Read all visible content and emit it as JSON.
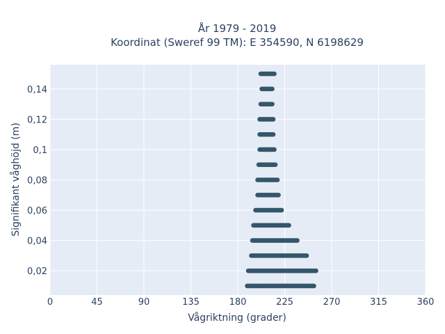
{
  "chart_data": {
    "type": "scatter",
    "title_line1": "År 1979 - 2019",
    "title_line2": "Koordinat (Sweref 99 TM): E 354590, N 6198629",
    "xlabel": "Vågriktning (grader)",
    "ylabel": "Signifikant våghöjd (m)",
    "xlim": [
      0,
      360
    ],
    "ylim": [
      0.004,
      0.156
    ],
    "x_ticks": [
      0,
      45,
      90,
      135,
      180,
      225,
      270,
      315,
      360
    ],
    "x_tick_labels": [
      "0",
      "45",
      "90",
      "135",
      "180",
      "225",
      "270",
      "315",
      "360"
    ],
    "y_ticks": [
      0.02,
      0.04,
      0.06,
      0.08,
      0.1,
      0.12,
      0.14
    ],
    "y_tick_labels": [
      "0,02",
      "0,04",
      "0,06",
      "0,08",
      "0,1",
      "0,12",
      "0,14"
    ],
    "grid": true,
    "colors": {
      "marker": "#35566b",
      "plot_bg": "#e5ecf6",
      "grid": "#ffffff",
      "text": "#2a3f5f"
    },
    "series": [
      {
        "bands": [
          {
            "y": 0.01,
            "x_min": 189,
            "x_max": 253
          },
          {
            "y": 0.02,
            "x_min": 190,
            "x_max": 255
          },
          {
            "y": 0.03,
            "x_min": 193,
            "x_max": 246
          },
          {
            "y": 0.04,
            "x_min": 194,
            "x_max": 237
          },
          {
            "y": 0.05,
            "x_min": 195,
            "x_max": 229
          },
          {
            "y": 0.06,
            "x_min": 197,
            "x_max": 222
          },
          {
            "y": 0.07,
            "x_min": 199,
            "x_max": 219
          },
          {
            "y": 0.08,
            "x_min": 199,
            "x_max": 218
          },
          {
            "y": 0.09,
            "x_min": 200,
            "x_max": 216
          },
          {
            "y": 0.1,
            "x_min": 201,
            "x_max": 215
          },
          {
            "y": 0.11,
            "x_min": 201,
            "x_max": 214
          },
          {
            "y": 0.12,
            "x_min": 201,
            "x_max": 214
          },
          {
            "y": 0.13,
            "x_min": 202,
            "x_max": 213
          },
          {
            "y": 0.14,
            "x_min": 203,
            "x_max": 213
          },
          {
            "y": 0.15,
            "x_min": 202,
            "x_max": 215
          }
        ]
      }
    ]
  }
}
